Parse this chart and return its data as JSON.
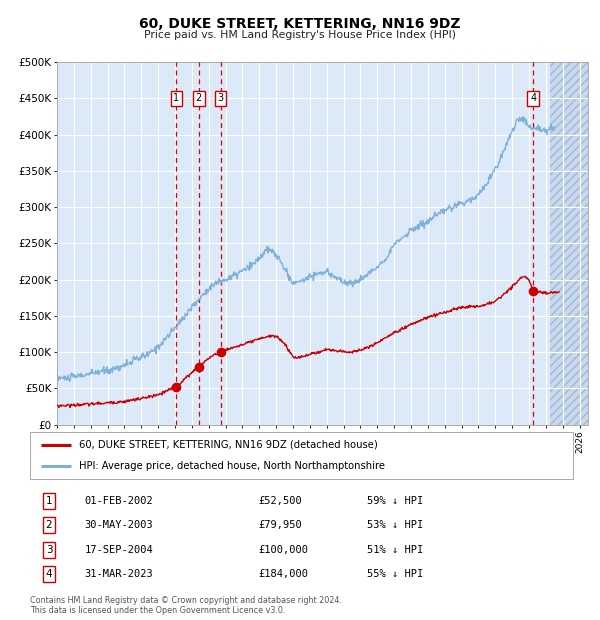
{
  "title": "60, DUKE STREET, KETTERING, NN16 9DZ",
  "subtitle": "Price paid vs. HM Land Registry's House Price Index (HPI)",
  "ylim": [
    0,
    500000
  ],
  "yticks": [
    0,
    50000,
    100000,
    150000,
    200000,
    250000,
    300000,
    350000,
    400000,
    450000,
    500000
  ],
  "ytick_labels": [
    "£0",
    "£50K",
    "£100K",
    "£150K",
    "£200K",
    "£250K",
    "£300K",
    "£350K",
    "£400K",
    "£450K",
    "£500K"
  ],
  "xlim_start": 1995.0,
  "xlim_end": 2026.5,
  "background_color": "#dce9f8",
  "grid_color": "#ffffff",
  "red_line_color": "#cc0000",
  "blue_line_color": "#7fb0d8",
  "sale_marker_color": "#cc0000",
  "dashed_line_color": "#dd0000",
  "transaction_labels": [
    "1",
    "2",
    "3",
    "4"
  ],
  "transaction_dates_num": [
    2002.08,
    2003.41,
    2004.71,
    2023.25
  ],
  "transaction_prices": [
    52500,
    79950,
    100000,
    184000
  ],
  "transaction_dates_str": [
    "01-FEB-2002",
    "30-MAY-2003",
    "17-SEP-2004",
    "31-MAR-2023"
  ],
  "transaction_hpi": [
    "59% ↓ HPI",
    "53% ↓ HPI",
    "51% ↓ HPI",
    "55% ↓ HPI"
  ],
  "legend_line1": "60, DUKE STREET, KETTERING, NN16 9DZ (detached house)",
  "legend_line2": "HPI: Average price, detached house, North Northamptonshire",
  "footer": "Contains HM Land Registry data © Crown copyright and database right 2024.\nThis data is licensed under the Open Government Licence v3.0.",
  "future_shade_start": 2024.25
}
